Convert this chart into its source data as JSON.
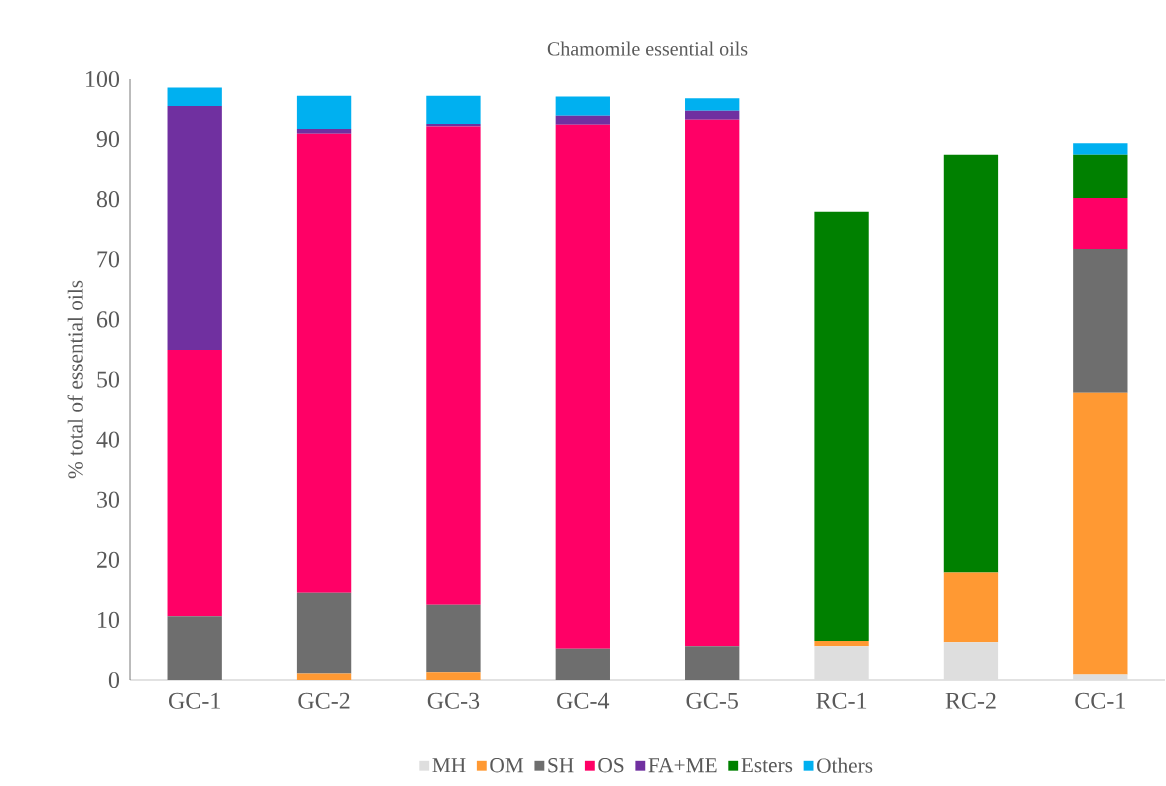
{
  "chart_data": {
    "type": "bar",
    "stacked": true,
    "title": "Chamomile essential oils",
    "ylabel": "% total of essential oils",
    "categories": [
      "GC-1",
      "GC-2",
      "GC-3",
      "GC-4",
      "GC-5",
      "RC-1",
      "RC-2",
      "CC-1"
    ],
    "series": [
      {
        "name": "MH",
        "color": "#dedede",
        "values": [
          0,
          0,
          0,
          0,
          0,
          5.6,
          6.3,
          0.9
        ]
      },
      {
        "name": "OM",
        "color": "#ff9933",
        "values": [
          0,
          1.1,
          1.3,
          0,
          0,
          0.9,
          11.6,
          46.9
        ]
      },
      {
        "name": "SH",
        "color": "#6e6e6e",
        "values": [
          10.6,
          13.4,
          11.2,
          5.2,
          5.6,
          0,
          0,
          23.9
        ]
      },
      {
        "name": "OS",
        "color": "#ff0066",
        "values": [
          44.3,
          76.4,
          79.6,
          87.2,
          87.6,
          0,
          0,
          8.5
        ]
      },
      {
        "name": "FA+ME",
        "color": "#7030a0",
        "values": [
          40.6,
          0.8,
          0.4,
          1.5,
          1.5,
          0,
          0,
          0
        ]
      },
      {
        "name": "Esters",
        "color": "#008000",
        "values": [
          0,
          0,
          0,
          0,
          0,
          71.4,
          69.5,
          7.2
        ]
      },
      {
        "name": "Others",
        "color": "#00b0f0",
        "values": [
          3.1,
          5.5,
          4.7,
          3.2,
          2.1,
          0,
          0,
          1.9
        ]
      }
    ],
    "ylim": [
      0,
      100
    ],
    "yticks": [
      0,
      10,
      20,
      30,
      40,
      50,
      60,
      70,
      80,
      90,
      100
    ],
    "grid": false,
    "legend": "bottom"
  }
}
